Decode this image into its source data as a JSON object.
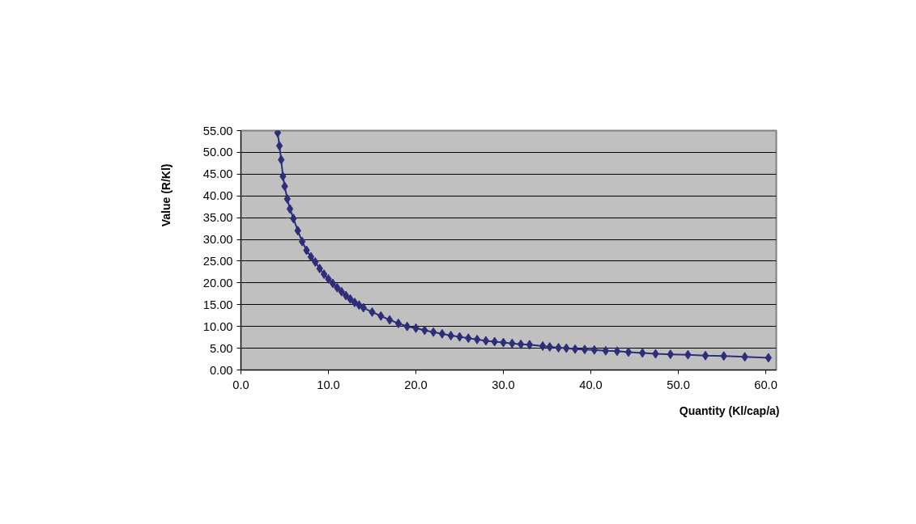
{
  "chart_data": {
    "type": "line",
    "xlabel": "Quantity (Kl/cap/a)",
    "ylabel": "Value (R/Kl)",
    "marker": "diamond",
    "grid": "y",
    "xlim": [
      0,
      61.2
    ],
    "ylim": [
      0,
      55
    ],
    "xticks": [
      {
        "value": 0,
        "label": "0.0"
      },
      {
        "value": 10,
        "label": "10.0"
      },
      {
        "value": 20,
        "label": "20.0"
      },
      {
        "value": 30,
        "label": "30.0"
      },
      {
        "value": 40,
        "label": "40.0"
      },
      {
        "value": 50,
        "label": "50.0"
      },
      {
        "value": 60,
        "label": "60.0"
      }
    ],
    "yticks": [
      {
        "value": 0,
        "label": "0.00"
      },
      {
        "value": 5,
        "label": "5.00"
      },
      {
        "value": 10,
        "label": "10.00"
      },
      {
        "value": 15,
        "label": "15.00"
      },
      {
        "value": 20,
        "label": "20.00"
      },
      {
        "value": 25,
        "label": "25.00"
      },
      {
        "value": 30,
        "label": "30.00"
      },
      {
        "value": 35,
        "label": "35.00"
      },
      {
        "value": 40,
        "label": "40.00"
      },
      {
        "value": 45,
        "label": "45.00"
      },
      {
        "value": 50,
        "label": "50.00"
      },
      {
        "value": 55,
        "label": "55.00"
      }
    ],
    "series": [
      {
        "color": "#2e2d7a",
        "x": [
          4.2,
          4.4,
          4.6,
          4.8,
          5.0,
          5.3,
          5.6,
          6.0,
          6.5,
          7.0,
          7.5,
          8.0,
          8.5,
          9.0,
          9.5,
          10.0,
          10.5,
          11.0,
          11.5,
          12.0,
          12.5,
          13.0,
          13.5,
          14.0,
          15.0,
          16.0,
          17.0,
          18.0,
          19.0,
          20.0,
          21.0,
          22.0,
          23.0,
          24.0,
          25.0,
          26.0,
          27.0,
          28.0,
          29.0,
          30.0,
          31.0,
          32.0,
          33.0,
          34.5,
          35.3,
          36.3,
          37.2,
          38.2,
          39.3,
          40.4,
          41.7,
          43.0,
          44.3,
          45.9,
          47.4,
          49.1,
          51.1,
          53.1,
          55.2,
          57.6,
          60.3
        ],
        "values": [
          54.5,
          51.5,
          48.3,
          44.5,
          42.2,
          39.3,
          37.0,
          34.8,
          32.0,
          29.5,
          27.5,
          26.0,
          24.8,
          23.3,
          22.0,
          20.9,
          19.9,
          18.9,
          18.0,
          17.1,
          16.3,
          15.5,
          14.9,
          14.3,
          13.3,
          12.4,
          11.5,
          10.7,
          10.0,
          9.6,
          9.1,
          8.7,
          8.3,
          7.9,
          7.6,
          7.3,
          7.0,
          6.7,
          6.5,
          6.3,
          6.1,
          5.9,
          5.8,
          5.5,
          5.3,
          5.1,
          5.0,
          4.8,
          4.7,
          4.6,
          4.4,
          4.3,
          4.1,
          3.9,
          3.7,
          3.6,
          3.5,
          3.3,
          3.2,
          3.0,
          2.8
        ]
      }
    ]
  }
}
